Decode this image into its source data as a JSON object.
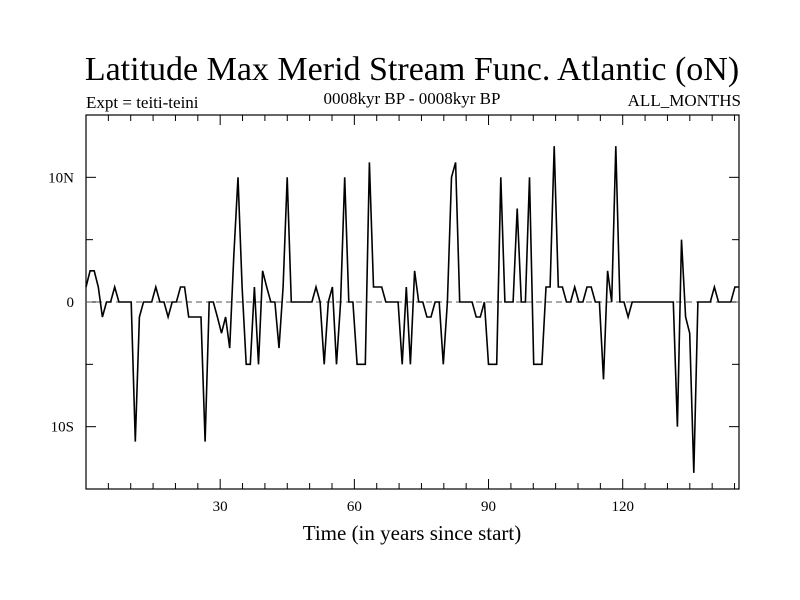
{
  "chart_data": {
    "type": "line",
    "title": "Latitude Max Merid Stream Func. Atlantic (oN)",
    "subtitle_left": "Expt = teiti-teini",
    "subtitle_center": "0008kyr BP - 0008kyr BP",
    "subtitle_right": "ALL_MONTHS",
    "xlabel": "Time (in years since start)",
    "ylabel": "",
    "xlim": [
      0,
      146
    ],
    "ylim": [
      -15,
      15
    ],
    "x_ticks": [
      {
        "value": 30,
        "label": "30"
      },
      {
        "value": 60,
        "label": "60"
      },
      {
        "value": 90,
        "label": "90"
      },
      {
        "value": 120,
        "label": "120"
      }
    ],
    "y_ticks": [
      {
        "value": 10,
        "label": "10N"
      },
      {
        "value": 0,
        "label": "0"
      },
      {
        "value": -10,
        "label": "10S"
      }
    ],
    "zero_line": "dashed",
    "grid": false,
    "series": [
      {
        "values": [
          1.2,
          2.5,
          2.5,
          1.2,
          -1.2,
          0,
          0,
          1.2,
          0,
          0,
          0,
          0,
          -11.2,
          -1.2,
          0,
          0,
          0,
          1.2,
          0,
          0,
          -1.2,
          0,
          0,
          1.2,
          1.2,
          -1.2,
          -1.2,
          -1.2,
          -1.2,
          -11.2,
          0,
          0,
          -1.2,
          -2.5,
          -1.2,
          -3.7,
          3.7,
          10,
          1.2,
          -5,
          -5,
          1.2,
          -5,
          2.5,
          1.2,
          0,
          0,
          -3.7,
          1.2,
          10,
          0,
          0,
          0,
          0,
          0,
          0,
          1.2,
          0,
          -5,
          0,
          1.2,
          -5,
          0,
          10,
          0,
          0,
          -5,
          -5,
          -5,
          11.2,
          1.2,
          1.2,
          1.2,
          0,
          0,
          0,
          0,
          -5,
          1.2,
          -5,
          2.5,
          0,
          0,
          -1.2,
          -1.2,
          0,
          0,
          -5,
          0,
          10,
          11.2,
          0,
          0,
          0,
          0,
          -1.2,
          -1.2,
          0,
          -5,
          -5,
          -5,
          10,
          0,
          0,
          0,
          7.5,
          0,
          0,
          10,
          -5,
          -5,
          -5,
          1.2,
          1.2,
          12.5,
          1.2,
          1.2,
          0,
          0,
          1.2,
          0,
          0,
          1.2,
          1.2,
          0,
          0,
          -6.2,
          2.5,
          0,
          12.5,
          0,
          0,
          -1.2,
          0,
          0,
          0,
          0,
          0,
          0,
          0,
          0,
          0,
          0,
          0,
          -10,
          5,
          -1.2,
          -2.5,
          -13.7,
          0,
          0,
          0,
          0,
          1.2,
          0,
          0,
          0,
          0,
          1.2,
          1.2
        ]
      }
    ]
  }
}
